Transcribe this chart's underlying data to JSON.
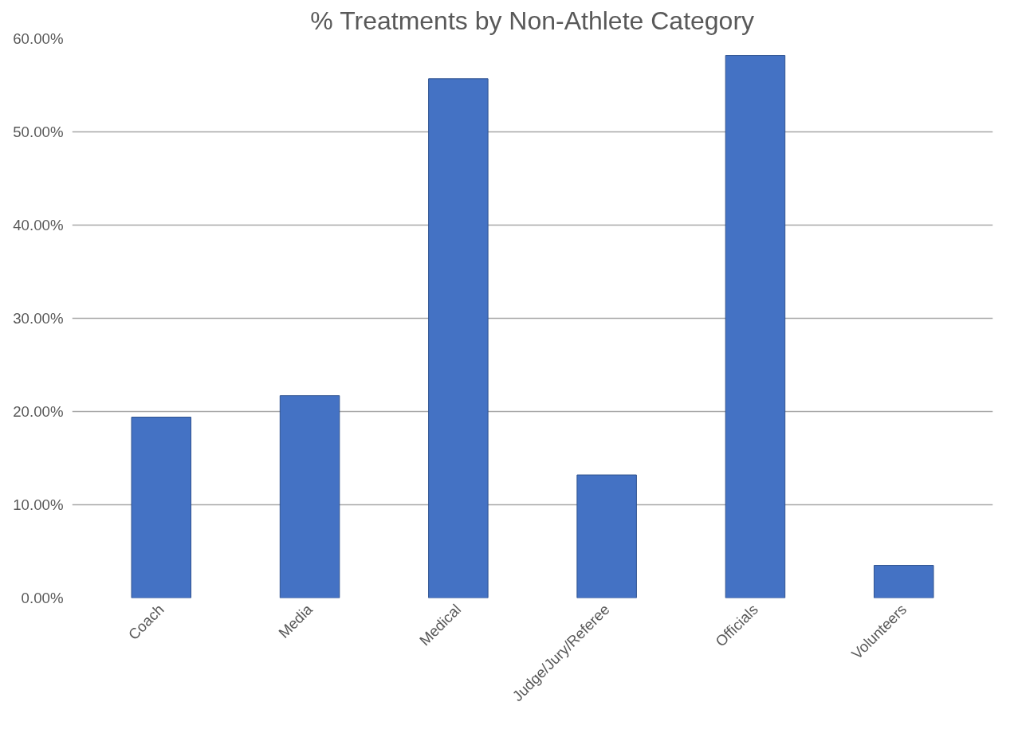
{
  "chart_data": {
    "type": "bar",
    "title": "% Treatments by Non-Athlete Category",
    "categories": [
      "Coach",
      "Media",
      "Medical",
      "Judge/Jury/Referee",
      "Officials",
      "Volunteers"
    ],
    "values": [
      19.4,
      21.7,
      55.7,
      13.2,
      58.2,
      3.5
    ],
    "color": "#4472c4",
    "ylim": [
      0,
      60
    ],
    "yticks": [
      {
        "value": 0,
        "label": "0.00%"
      },
      {
        "value": 10,
        "label": "10.00%"
      },
      {
        "value": 20,
        "label": "20.00%"
      },
      {
        "value": 30,
        "label": "30.00%"
      },
      {
        "value": 40,
        "label": "40.00%"
      },
      {
        "value": 50,
        "label": "50.00%"
      },
      {
        "value": 60,
        "label": "60.00%"
      }
    ],
    "grid": "y"
  }
}
